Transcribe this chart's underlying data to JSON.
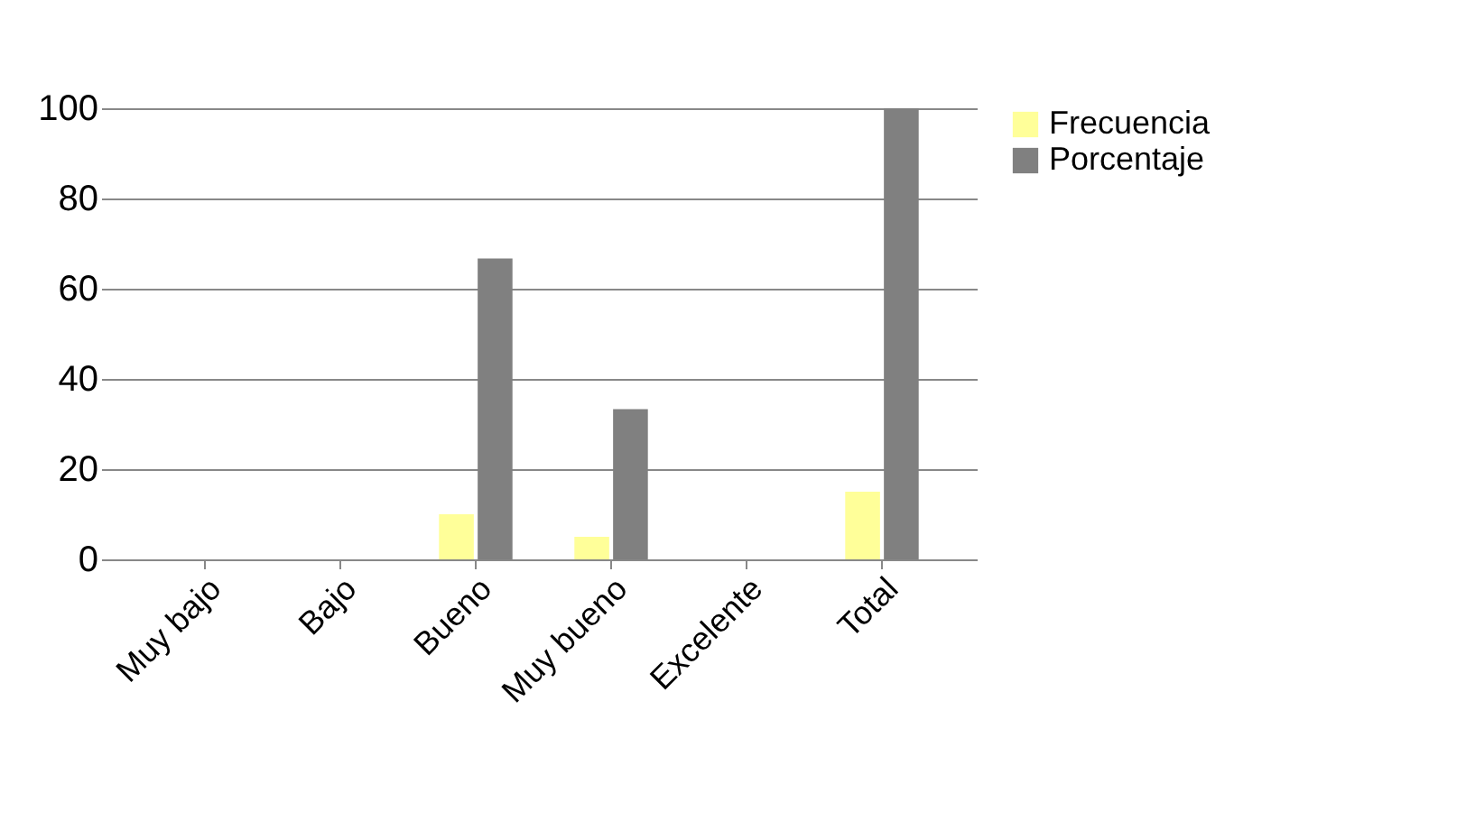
{
  "chart_data": {
    "type": "bar",
    "categories": [
      "Muy bajo",
      "Bajo",
      "Bueno",
      "Muy bueno",
      "Excelente",
      "Total"
    ],
    "series": [
      {
        "name": "Frecuencia",
        "color": "#ffff99",
        "values": [
          null,
          null,
          10,
          5,
          null,
          15
        ]
      },
      {
        "name": "Porcentaje",
        "color": "#808080",
        "values": [
          null,
          null,
          66.7,
          33.3,
          null,
          100
        ]
      }
    ],
    "ylim": [
      0,
      100
    ],
    "yticks": [
      0,
      20,
      40,
      60,
      80,
      100
    ],
    "grid": "y",
    "legend": "right"
  }
}
